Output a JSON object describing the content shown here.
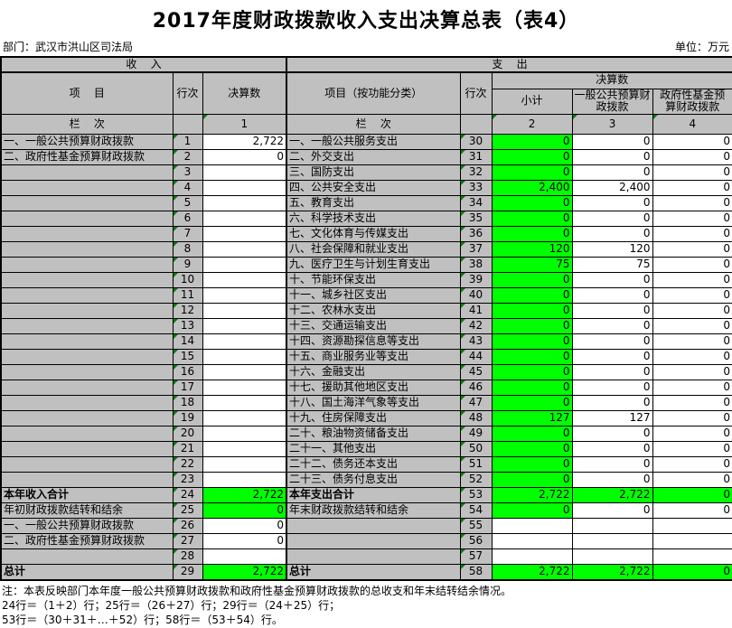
{
  "title": "2017年度财政拨款收入支出决算总表（表4）",
  "meta": {
    "department": "部门：武汉市洪山区司法局",
    "unit": "单位：万元"
  },
  "colors": {
    "cell_gray": "#c0c0c0",
    "highlight_green": "#00ff00",
    "triangle_green": "#008000"
  },
  "header": {
    "income_band": "收    入",
    "expense_band": "支    出",
    "item": "项    目",
    "line_no": "行次",
    "final_accounts": "决算数",
    "item_by_function": "项目（按功能分类）",
    "subtotal": "小计",
    "general_budget": "一般公共预算财政拨款",
    "govt_fund": "政府性基金预算财政拨款",
    "column_row": "栏    次",
    "col_nums": [
      "1",
      "2",
      "3",
      "4"
    ]
  },
  "rows": [
    {
      "in_label": "一、一般公共预算财政拨款",
      "in_no": "1",
      "in_val": "2,722",
      "in_green": false,
      "in_bold": false,
      "ex_label": "一、一般公共服务支出",
      "ex_no": "30",
      "sub": "0",
      "gen": "0",
      "fund": "0",
      "pat": "s",
      "ex_bold": false
    },
    {
      "in_label": "二、政府性基金预算财政拨款",
      "in_no": "2",
      "in_val": "0",
      "in_green": false,
      "in_bold": false,
      "ex_label": "二、外交支出",
      "ex_no": "31",
      "sub": "0",
      "gen": "0",
      "fund": "0",
      "pat": "s",
      "ex_bold": false
    },
    {
      "in_label": "",
      "in_no": "3",
      "in_val": "",
      "in_green": false,
      "in_bold": false,
      "ex_label": "三、国防支出",
      "ex_no": "32",
      "sub": "0",
      "gen": "0",
      "fund": "0",
      "pat": "s",
      "ex_bold": false
    },
    {
      "in_label": "",
      "in_no": "4",
      "in_val": "",
      "in_green": false,
      "in_bold": false,
      "ex_label": "四、公共安全支出",
      "ex_no": "33",
      "sub": "2,400",
      "gen": "2,400",
      "fund": "0",
      "pat": "s",
      "ex_bold": false
    },
    {
      "in_label": "",
      "in_no": "5",
      "in_val": "",
      "in_green": false,
      "in_bold": false,
      "ex_label": "五、教育支出",
      "ex_no": "34",
      "sub": "0",
      "gen": "0",
      "fund": "0",
      "pat": "s",
      "ex_bold": false
    },
    {
      "in_label": "",
      "in_no": "6",
      "in_val": "",
      "in_green": false,
      "in_bold": false,
      "ex_label": "六、科学技术支出",
      "ex_no": "35",
      "sub": "0",
      "gen": "0",
      "fund": "0",
      "pat": "s",
      "ex_bold": false
    },
    {
      "in_label": "",
      "in_no": "7",
      "in_val": "",
      "in_green": false,
      "in_bold": false,
      "ex_label": "七、文化体育与传媒支出",
      "ex_no": "36",
      "sub": "0",
      "gen": "0",
      "fund": "0",
      "pat": "s",
      "ex_bold": false
    },
    {
      "in_label": "",
      "in_no": "8",
      "in_val": "",
      "in_green": false,
      "in_bold": false,
      "ex_label": "八、社会保障和就业支出",
      "ex_no": "37",
      "sub": "120",
      "gen": "120",
      "fund": "0",
      "pat": "s",
      "ex_bold": false
    },
    {
      "in_label": "",
      "in_no": "9",
      "in_val": "",
      "in_green": false,
      "in_bold": false,
      "ex_label": "九、医疗卫生与计划生育支出",
      "ex_no": "38",
      "sub": "75",
      "gen": "75",
      "fund": "0",
      "pat": "s",
      "ex_bold": false
    },
    {
      "in_label": "",
      "in_no": "10",
      "in_val": "",
      "in_green": false,
      "in_bold": false,
      "ex_label": "十、节能环保支出",
      "ex_no": "39",
      "sub": "0",
      "gen": "0",
      "fund": "0",
      "pat": "s",
      "ex_bold": false
    },
    {
      "in_label": "",
      "in_no": "11",
      "in_val": "",
      "in_green": false,
      "in_bold": false,
      "ex_label": "十一、城乡社区支出",
      "ex_no": "40",
      "sub": "0",
      "gen": "0",
      "fund": "0",
      "pat": "s",
      "ex_bold": false
    },
    {
      "in_label": "",
      "in_no": "12",
      "in_val": "",
      "in_green": false,
      "in_bold": false,
      "ex_label": "十二、农林水支出",
      "ex_no": "41",
      "sub": "0",
      "gen": "0",
      "fund": "0",
      "pat": "s",
      "ex_bold": false
    },
    {
      "in_label": "",
      "in_no": "13",
      "in_val": "",
      "in_green": false,
      "in_bold": false,
      "ex_label": "十三、交通运输支出",
      "ex_no": "42",
      "sub": "0",
      "gen": "0",
      "fund": "0",
      "pat": "s",
      "ex_bold": false
    },
    {
      "in_label": "",
      "in_no": "14",
      "in_val": "",
      "in_green": false,
      "in_bold": false,
      "ex_label": "十四、资源勘探信息等支出",
      "ex_no": "43",
      "sub": "0",
      "gen": "0",
      "fund": "0",
      "pat": "s",
      "ex_bold": false
    },
    {
      "in_label": "",
      "in_no": "15",
      "in_val": "",
      "in_green": false,
      "in_bold": false,
      "ex_label": "十五、商业服务业等支出",
      "ex_no": "44",
      "sub": "0",
      "gen": "0",
      "fund": "0",
      "pat": "s",
      "ex_bold": false
    },
    {
      "in_label": "",
      "in_no": "16",
      "in_val": "",
      "in_green": false,
      "in_bold": false,
      "ex_label": "十六、金融支出",
      "ex_no": "45",
      "sub": "0",
      "gen": "0",
      "fund": "0",
      "pat": "s",
      "ex_bold": false
    },
    {
      "in_label": "",
      "in_no": "17",
      "in_val": "",
      "in_green": false,
      "in_bold": false,
      "ex_label": "十七、援助其他地区支出",
      "ex_no": "46",
      "sub": "0",
      "gen": "0",
      "fund": "0",
      "pat": "s",
      "ex_bold": false
    },
    {
      "in_label": "",
      "in_no": "18",
      "in_val": "",
      "in_green": false,
      "in_bold": false,
      "ex_label": "十八、国土海洋气象等支出",
      "ex_no": "47",
      "sub": "0",
      "gen": "0",
      "fund": "0",
      "pat": "s",
      "ex_bold": false
    },
    {
      "in_label": "",
      "in_no": "19",
      "in_val": "",
      "in_green": false,
      "in_bold": false,
      "ex_label": "十九、住房保障支出",
      "ex_no": "48",
      "sub": "127",
      "gen": "127",
      "fund": "0",
      "pat": "s",
      "ex_bold": false
    },
    {
      "in_label": "",
      "in_no": "20",
      "in_val": "",
      "in_green": false,
      "in_bold": false,
      "ex_label": "二十、粮油物资储备支出",
      "ex_no": "49",
      "sub": "0",
      "gen": "0",
      "fund": "0",
      "pat": "s",
      "ex_bold": false
    },
    {
      "in_label": "",
      "in_no": "21",
      "in_val": "",
      "in_green": false,
      "in_bold": false,
      "ex_label": "二十一、其他支出",
      "ex_no": "50",
      "sub": "0",
      "gen": "0",
      "fund": "0",
      "pat": "s",
      "ex_bold": false
    },
    {
      "in_label": "",
      "in_no": "22",
      "in_val": "",
      "in_green": false,
      "in_bold": false,
      "ex_label": "二十二、债务还本支出",
      "ex_no": "51",
      "sub": "0",
      "gen": "0",
      "fund": "0",
      "pat": "s",
      "ex_bold": false
    },
    {
      "in_label": "",
      "in_no": "23",
      "in_val": "",
      "in_green": false,
      "in_bold": false,
      "ex_label": "二十三、债务付息支出",
      "ex_no": "52",
      "sub": "0",
      "gen": "0",
      "fund": "0",
      "pat": "s",
      "ex_bold": false
    },
    {
      "in_label": "本年收入合计",
      "in_no": "24",
      "in_val": "2,722",
      "in_green": true,
      "in_bold": true,
      "ex_label": "本年支出合计",
      "ex_no": "53",
      "sub": "2,722",
      "gen": "2,722",
      "fund": "0",
      "pat": "a",
      "ex_bold": true
    },
    {
      "in_label": "年初财政拨款结转和结余",
      "in_no": "25",
      "in_val": "0",
      "in_green": true,
      "in_bold": false,
      "ex_label": "年末财政拨款结转和结余",
      "ex_no": "54",
      "sub": "0",
      "gen": "0",
      "fund": "0",
      "pat": "s",
      "ex_bold": false
    },
    {
      "in_label": "一、一般公共预算财政拨款",
      "in_no": "26",
      "in_val": "0",
      "in_green": false,
      "in_bold": false,
      "ex_label": "",
      "ex_no": "55",
      "sub": "",
      "gen": "",
      "fund": "",
      "pat": "n",
      "ex_bold": false
    },
    {
      "in_label": "二、政府性基金预算财政拨款",
      "in_no": "27",
      "in_val": "0",
      "in_green": false,
      "in_bold": false,
      "ex_label": "",
      "ex_no": "56",
      "sub": "",
      "gen": "",
      "fund": "",
      "pat": "n",
      "ex_bold": false
    },
    {
      "in_label": "",
      "in_no": "28",
      "in_val": "",
      "in_green": false,
      "in_bold": false,
      "ex_label": "",
      "ex_no": "57",
      "sub": "",
      "gen": "",
      "fund": "",
      "pat": "n",
      "ex_bold": false
    },
    {
      "in_label": "总计",
      "in_no": "29",
      "in_val": "2,722",
      "in_green": true,
      "in_bold": true,
      "ex_label": "总计",
      "ex_no": "58",
      "sub": "2,722",
      "gen": "2,722",
      "fund": "0",
      "pat": "a",
      "ex_bold": true
    }
  ],
  "notes": [
    "注：本表反映部门本年度一般公共预算财政拨款和政府性基金预算财政拨款的总收支和年末结转结余情况。",
    "24行＝（1＋2）行；25行＝（26＋27）行；29行＝（24＋25）行；",
    "53行＝（30＋31＋…＋52）行；58行＝（53＋54）行。"
  ]
}
